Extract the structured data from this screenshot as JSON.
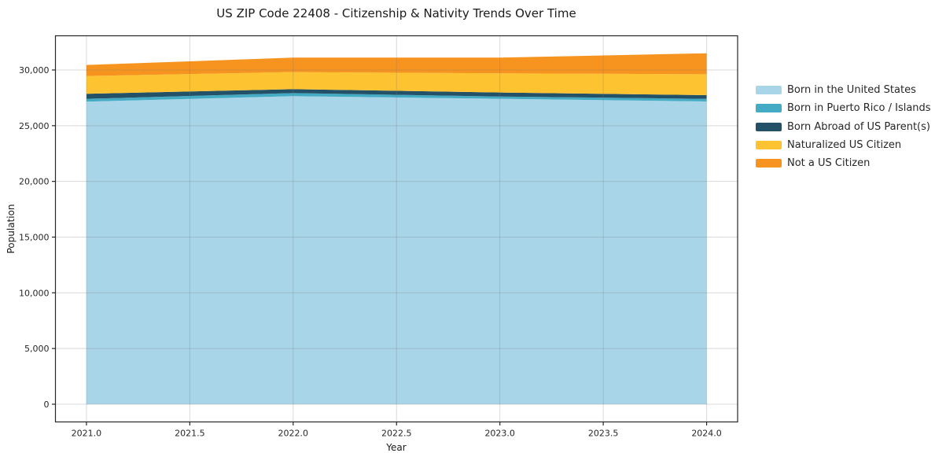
{
  "chart_data": {
    "type": "area",
    "stacked": true,
    "title": "US ZIP Code 22408 - Citizenship & Nativity Trends Over Time",
    "xlabel": "Year",
    "ylabel": "Population",
    "x": [
      2021,
      2022,
      2023,
      2024
    ],
    "series": [
      {
        "name": "Born in the United States",
        "color": "#a8d5e8",
        "values": [
          27160,
          27650,
          27410,
          27180
        ]
      },
      {
        "name": "Born in Puerto Rico / Islands",
        "color": "#44abc4",
        "values": [
          250,
          280,
          210,
          230
        ]
      },
      {
        "name": "Born Abroad of US Parent(s)",
        "color": "#235268",
        "values": [
          450,
          350,
          360,
          330
        ]
      },
      {
        "name": "Naturalized US Citizen",
        "color": "#fdc330",
        "values": [
          1600,
          1530,
          1720,
          1880
        ]
      },
      {
        "name": "Not a US Citizen",
        "color": "#f7941f",
        "values": [
          990,
          1300,
          1410,
          1880
        ]
      }
    ],
    "totals": [
      30450,
      31110,
      31110,
      31500
    ],
    "xlim": [
      2020.85,
      2024.15
    ],
    "ylim": [
      -1590,
      33070
    ],
    "x_ticks": [
      2021.0,
      2021.5,
      2022.0,
      2022.5,
      2023.0,
      2023.5,
      2024.0
    ],
    "x_tick_labels": [
      "2021.0",
      "2021.5",
      "2022.0",
      "2022.5",
      "2023.0",
      "2023.5",
      "2024.0"
    ],
    "y_ticks": [
      0,
      5000,
      10000,
      15000,
      20000,
      25000,
      30000
    ],
    "y_tick_labels": [
      "0",
      "5,000",
      "10,000",
      "15,000",
      "20,000",
      "25,000",
      "30,000"
    ],
    "grid": true,
    "legend_position": "right",
    "colors": {
      "background": "#ffffff",
      "spine": "#262626",
      "grid": "rgba(120,120,120,0.28)",
      "text": "#262626"
    }
  }
}
